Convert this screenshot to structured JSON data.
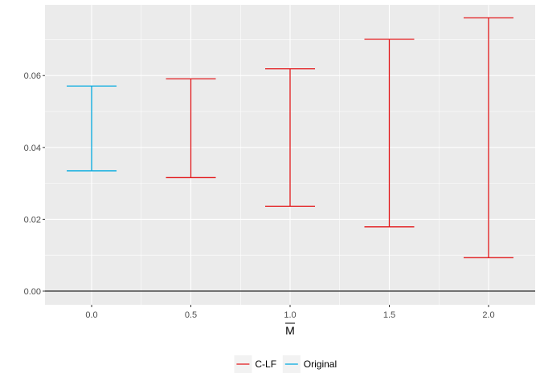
{
  "chart_data": {
    "type": "errorbar",
    "title": "",
    "xlabel": "M",
    "xlabel_overline": true,
    "ylabel": "",
    "xlim": [
      -0.235,
      2.235
    ],
    "ylim": [
      -0.0038,
      0.0797
    ],
    "x_ticks": [
      0.0,
      0.5,
      1.0,
      1.5,
      2.0
    ],
    "x_tick_labels": [
      "0.0",
      "0.5",
      "1.0",
      "1.5",
      "2.0"
    ],
    "y_ticks": [
      0.0,
      0.02,
      0.04,
      0.06
    ],
    "y_tick_labels": [
      "0.00",
      "0.02",
      "0.04",
      "0.06"
    ],
    "hline": 0,
    "grid": true,
    "legend_position": "bottom",
    "series": [
      {
        "name": "Original",
        "color": "#00A9E0",
        "points": [
          {
            "x": 0.0,
            "ymin": 0.0335,
            "ymax": 0.0571
          }
        ]
      },
      {
        "name": "C-LF",
        "color": "#E31A1C",
        "points": [
          {
            "x": 0.5,
            "ymin": 0.0316,
            "ymax": 0.0591
          },
          {
            "x": 1.0,
            "ymin": 0.0236,
            "ymax": 0.0619
          },
          {
            "x": 1.5,
            "ymin": 0.0179,
            "ymax": 0.0701
          },
          {
            "x": 2.0,
            "ymin": 0.0093,
            "ymax": 0.0761
          }
        ]
      }
    ],
    "legend": [
      {
        "label": "C-LF",
        "color": "#E31A1C"
      },
      {
        "label": "Original",
        "color": "#00A9E0"
      }
    ]
  }
}
